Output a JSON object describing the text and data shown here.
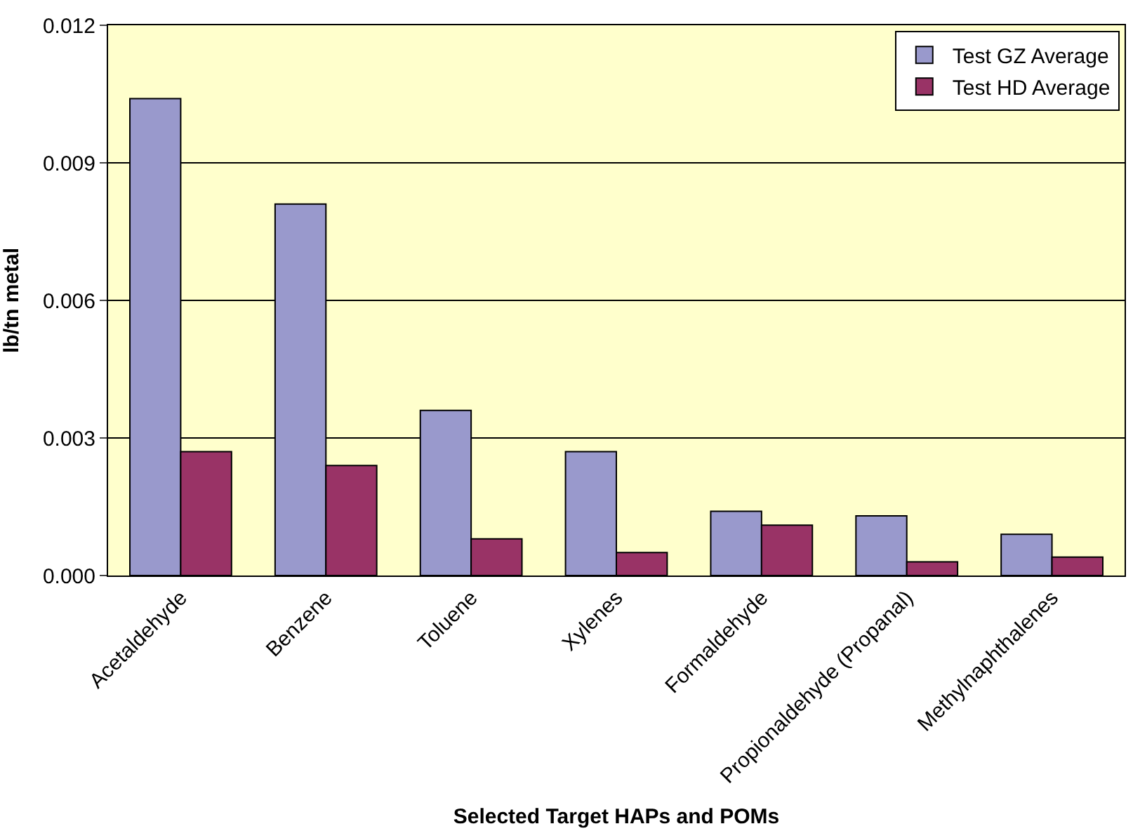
{
  "chart_data": {
    "type": "bar",
    "xlabel": "Selected Target HAPs and POMs",
    "ylabel": "lb/tn metal",
    "categories": [
      "Acetaldehyde",
      "Benzene",
      "Toluene",
      "Xylenes",
      "Formaldehyde",
      "Propionaldehyde (Propanal)",
      "Methylnaphthalenes"
    ],
    "series": [
      {
        "name": "Test GZ Average",
        "color": "#9999cc",
        "values": [
          0.0104,
          0.0081,
          0.0036,
          0.0027,
          0.0014,
          0.0013,
          0.0009
        ]
      },
      {
        "name": "Test HD Average",
        "color": "#993366",
        "values": [
          0.0027,
          0.0024,
          0.0008,
          0.0005,
          0.0011,
          0.0003,
          0.0004
        ]
      }
    ],
    "ylim": [
      0,
      0.012
    ],
    "yticks": [
      {
        "value": 0,
        "label": "0.000"
      },
      {
        "value": 0.003,
        "label": "0.003"
      },
      {
        "value": 0.006,
        "label": "0.006"
      },
      {
        "value": 0.009,
        "label": "0.009"
      },
      {
        "value": 0.012,
        "label": "0.012"
      }
    ],
    "grid": "y",
    "legend": "top right"
  }
}
